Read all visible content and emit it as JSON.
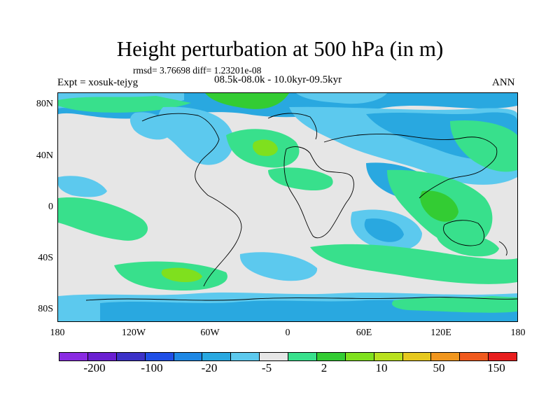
{
  "title": "Height perturbation at 500 hPa (in m)",
  "stats": "rmsd= 3.76698 diff= 1.23201e-08",
  "expt": "Expt = xosuk-tejyg",
  "period": "08.5k-08.0k - 10.0kyr-09.5kyr",
  "season": "ANN",
  "y_labels": [
    "80N",
    "40N",
    "0",
    "40S",
    "80S"
  ],
  "x_labels": [
    "180",
    "120W",
    "60W",
    "0",
    "60E",
    "120E",
    "180"
  ],
  "colorbar": {
    "colors": [
      "#8a2be2",
      "#6a1fd1",
      "#3c32c8",
      "#1f4fe6",
      "#1e88e5",
      "#29a8e0",
      "#5cc9ee",
      "#e6e6e6",
      "#38e08c",
      "#33cc33",
      "#7fe01e",
      "#b8e01e",
      "#e6c81e",
      "#f0961e",
      "#f05a1e",
      "#e81e1e"
    ],
    "labels": [
      "-200",
      "-100",
      "-20",
      "-5",
      "2",
      "10",
      "50",
      "150"
    ]
  }
}
